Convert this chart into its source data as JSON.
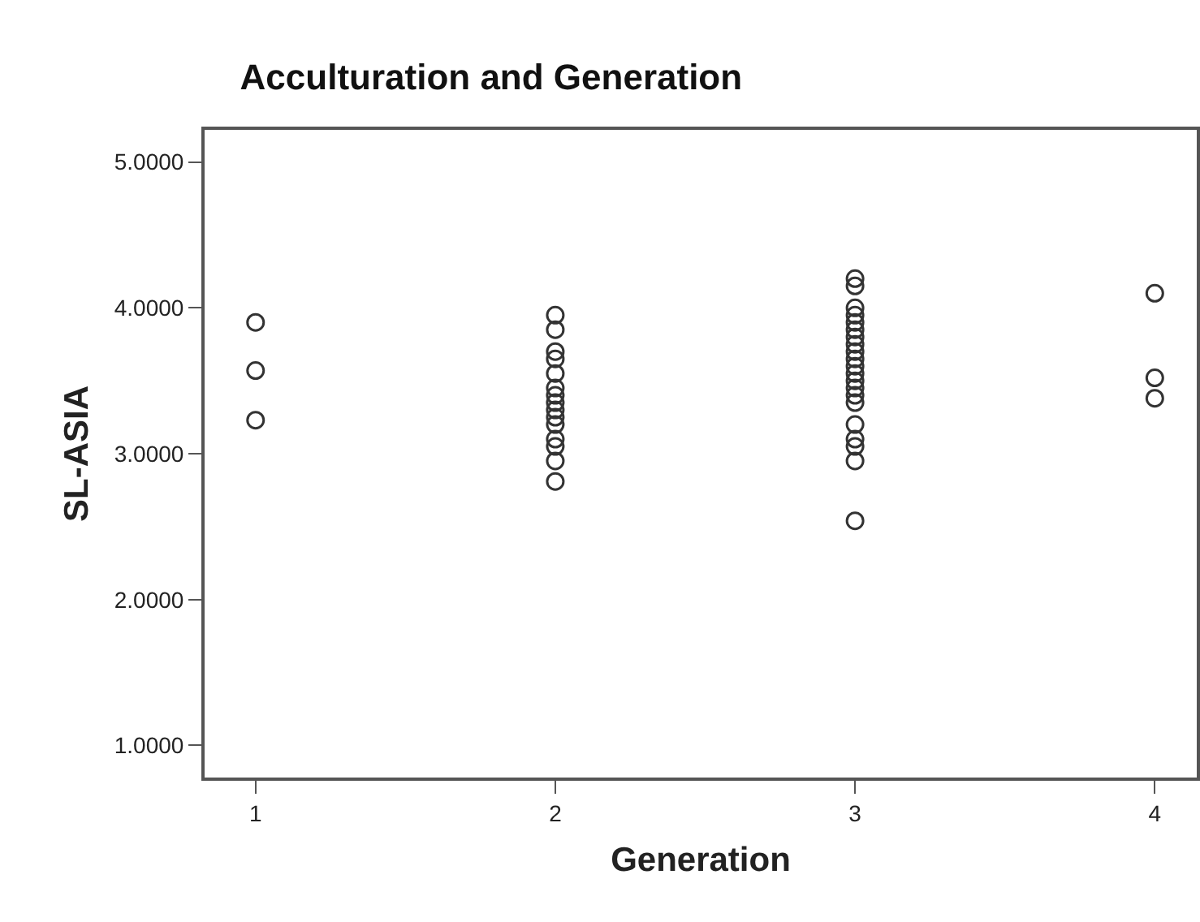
{
  "chart_data": {
    "type": "scatter",
    "title": "Acculturation and Generation",
    "xlabel": "Generation",
    "ylabel": "SL-ASIA",
    "x": [
      1,
      1,
      1,
      2,
      2,
      2,
      2,
      2,
      2,
      2,
      2,
      2,
      2,
      2,
      2,
      2,
      2,
      2,
      3,
      3,
      3,
      3,
      3,
      3,
      3,
      3,
      3,
      3,
      3,
      3,
      3,
      3,
      3,
      3,
      3,
      3,
      3,
      3,
      3,
      4,
      4,
      4
    ],
    "values": [
      3.9,
      3.57,
      3.23,
      3.95,
      3.85,
      3.7,
      3.65,
      3.55,
      3.45,
      3.4,
      3.35,
      3.3,
      3.25,
      3.2,
      3.1,
      3.05,
      2.95,
      2.81,
      4.2,
      4.15,
      4.0,
      3.95,
      3.9,
      3.85,
      3.8,
      3.75,
      3.7,
      3.65,
      3.6,
      3.55,
      3.5,
      3.45,
      3.4,
      3.35,
      3.2,
      3.1,
      3.05,
      2.95,
      2.54,
      4.1,
      3.52,
      3.38
    ],
    "color": "#333333",
    "marker": "circle",
    "grid": false,
    "xlim": [
      0.83,
      4.14
    ],
    "xticks": [
      1,
      2,
      3,
      4
    ],
    "ylim": [
      0.78,
      5.22
    ],
    "yticks": [
      {
        "value": 1,
        "label": "1.0000"
      },
      {
        "value": 2,
        "label": "2.0000"
      },
      {
        "value": 3,
        "label": "3.0000"
      },
      {
        "value": 4,
        "label": "4.0000"
      },
      {
        "value": 5,
        "label": "5.0000"
      }
    ]
  }
}
